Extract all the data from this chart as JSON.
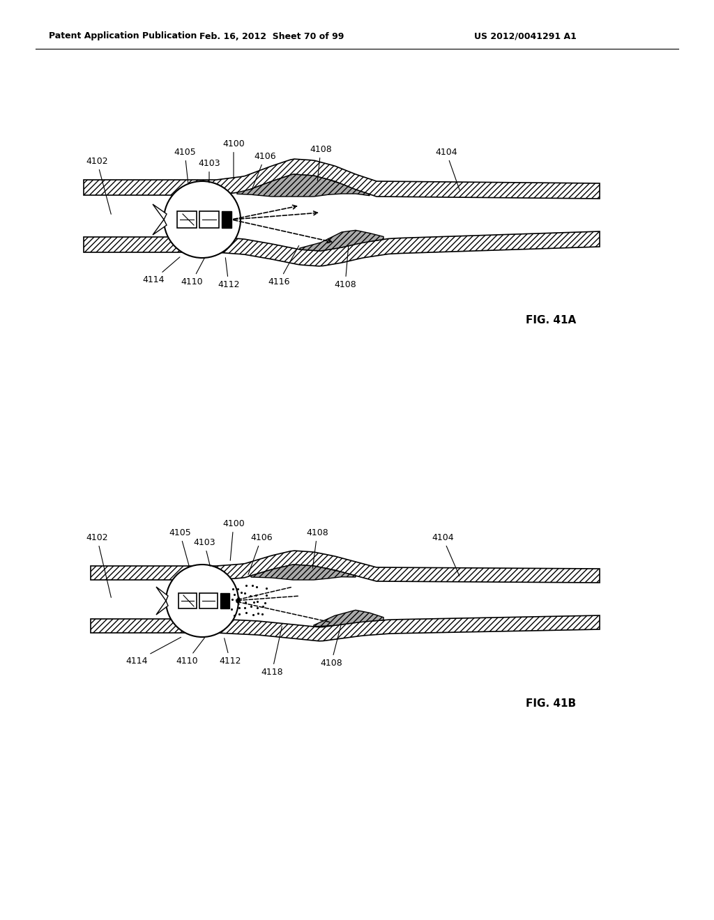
{
  "bg_color": "#ffffff",
  "header_left": "Patent Application Publication",
  "header_mid": "Feb. 16, 2012  Sheet 70 of 99",
  "header_right": "US 2012/0041291 A1",
  "fig_a_label": "FIG. 41A",
  "fig_b_label": "FIG. 41B",
  "label_fontsize": 9,
  "header_fontsize": 9,
  "fig_label_fontsize": 11
}
